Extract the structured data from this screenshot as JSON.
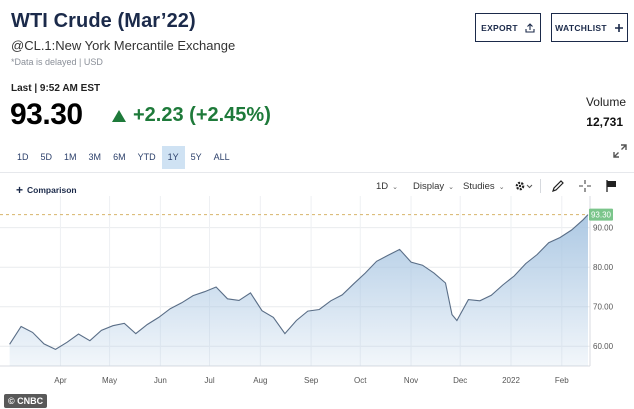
{
  "header": {
    "title": "WTI Crude (Mar’22)",
    "subtitle": "@CL.1:New York Mercantile Exchange",
    "delay_note": "*Data is delayed | USD",
    "export_label": "EXPORT",
    "watchlist_label": "WATCHLIST"
  },
  "quote": {
    "last_label": "Last | 9:52 AM EST",
    "price": "93.30",
    "change": "+2.23 (+2.45%)",
    "volume_label": "Volume",
    "volume_value": "12,731"
  },
  "ranges": [
    "1D",
    "5D",
    "1M",
    "3M",
    "6M",
    "YTD",
    "1Y",
    "5Y",
    "ALL"
  ],
  "active_range": "1Y",
  "toolbar": {
    "comparison_label": "Comparison",
    "interval_label": "1D",
    "display_label": "Display",
    "studies_label": "Studies"
  },
  "watermark": "© CNBC",
  "colors": {
    "accent": "#1b2a4a",
    "up": "#1e7a3a",
    "line": "#5a6e87",
    "fill": "#a9c6e2",
    "price_tag": "#7bc58b"
  },
  "chart_data": {
    "type": "area",
    "ylim": [
      55,
      97
    ],
    "yticks": [
      60,
      70,
      80,
      90
    ],
    "ytick_labels": [
      "60.00",
      "70.00",
      "80.00",
      "90.00"
    ],
    "last_value_label": "93.30",
    "last_value": 93.3,
    "x_labels": [
      "Apr",
      "May",
      "Jun",
      "Jul",
      "Aug",
      "Sep",
      "Oct",
      "Nov",
      "Dec",
      "2022",
      "Feb"
    ],
    "x_label_dates": [
      "2021-04-01",
      "2021-05-01",
      "2021-06-01",
      "2021-07-01",
      "2021-08-01",
      "2021-09-01",
      "2021-10-01",
      "2021-11-01",
      "2021-12-01",
      "2022-01-01",
      "2022-02-01"
    ],
    "x_range": [
      "2021-02-28",
      "2022-02-17"
    ],
    "series": [
      {
        "dates": [
          "2021-03-01",
          "2021-03-08",
          "2021-03-15",
          "2021-03-22",
          "2021-03-29",
          "2021-04-05",
          "2021-04-12",
          "2021-04-19",
          "2021-04-26",
          "2021-05-03",
          "2021-05-10",
          "2021-05-17",
          "2021-05-24",
          "2021-05-31",
          "2021-06-07",
          "2021-06-14",
          "2021-06-21",
          "2021-06-28",
          "2021-07-05",
          "2021-07-12",
          "2021-07-19",
          "2021-07-26",
          "2021-08-02",
          "2021-08-09",
          "2021-08-16",
          "2021-08-23",
          "2021-08-30",
          "2021-09-06",
          "2021-09-13",
          "2021-09-20",
          "2021-09-27",
          "2021-10-04",
          "2021-10-11",
          "2021-10-18",
          "2021-10-25",
          "2021-11-01",
          "2021-11-08",
          "2021-11-15",
          "2021-11-22",
          "2021-11-26",
          "2021-11-29",
          "2021-12-06",
          "2021-12-13",
          "2021-12-20",
          "2021-12-27",
          "2022-01-03",
          "2022-01-10",
          "2022-01-17",
          "2022-01-24",
          "2022-01-31",
          "2022-02-07",
          "2022-02-14",
          "2022-02-17"
        ],
        "values": [
          60.5,
          65.0,
          63.5,
          60.6,
          59.2,
          61.0,
          63.1,
          61.4,
          64.0,
          65.2,
          65.8,
          63.2,
          65.5,
          67.3,
          69.5,
          71.0,
          72.8,
          73.8,
          75.0,
          72.0,
          71.6,
          73.5,
          69.0,
          67.3,
          63.2,
          66.5,
          68.9,
          69.3,
          71.5,
          73.0,
          75.8,
          78.5,
          81.5,
          83.0,
          84.5,
          81.3,
          80.5,
          78.5,
          76.0,
          68.0,
          66.5,
          71.8,
          71.5,
          72.9,
          75.5,
          77.8,
          80.9,
          83.2,
          86.2,
          87.5,
          89.4,
          92.0,
          93.3
        ]
      }
    ]
  }
}
